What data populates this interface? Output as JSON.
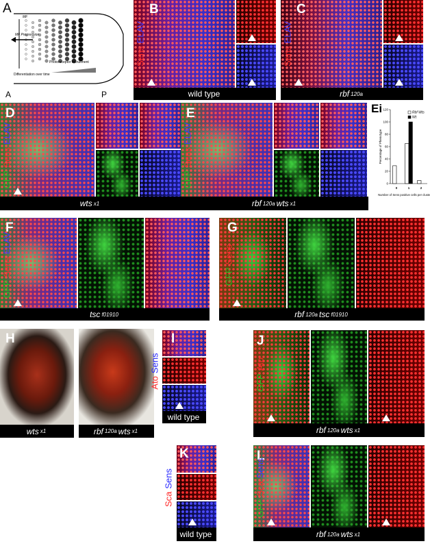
{
  "panel_a": {
    "letter": "A",
    "mf": "MF",
    "progression": "MF Progression",
    "recruitment": "Photoreceptor recruitment",
    "differentiation": "Differentiation over time",
    "anterior": "A",
    "posterior": "P"
  },
  "panels": [
    {
      "letter": "B",
      "channels": [
        {
          "text": "Sens",
          "color": "#ff2a2a"
        },
        {
          "text": "ELAV",
          "color": "#3a3aff"
        }
      ],
      "captions": [
        [
          {
            "text": "wild type",
            "style": "normal"
          }
        ]
      ]
    },
    {
      "letter": "C",
      "channels": [
        {
          "text": "Sens",
          "color": "#ff2a2a"
        },
        {
          "text": "ELAV",
          "color": "#3a3aff"
        }
      ],
      "captions": [
        [
          {
            "text": "rbf",
            "style": "italic"
          },
          {
            "text": "120a",
            "style": "sup"
          }
        ]
      ]
    },
    {
      "letter": "D",
      "channels": [
        {
          "text": "GFP",
          "color": "#22c022"
        },
        {
          "text": "Sens",
          "color": "#ff2a2a"
        },
        {
          "text": "ELAV",
          "color": "#3a3aff"
        }
      ],
      "captions": [
        [
          {
            "text": "wts",
            "style": "italic"
          },
          {
            "text": "x1",
            "style": "sup"
          }
        ]
      ]
    },
    {
      "letter": "E",
      "channels": [
        {
          "text": "GFP",
          "color": "#22c022"
        },
        {
          "text": "Sens",
          "color": "#ff2a2a"
        },
        {
          "text": "ELAV",
          "color": "#3a3aff"
        }
      ],
      "captions": [
        [
          {
            "text": "rbf",
            "style": "italic"
          },
          {
            "text": "120a",
            "style": "sup"
          },
          {
            "text": "wts",
            "style": "italic"
          },
          {
            "text": "x1",
            "style": "sup"
          }
        ]
      ]
    },
    {
      "letter": "F",
      "channels": [
        {
          "text": "GFP",
          "color": "#22c022"
        },
        {
          "text": "Sens",
          "color": "#ff2a2a"
        },
        {
          "text": "ELAV",
          "color": "#3a3aff"
        }
      ],
      "captions": [
        [
          {
            "text": "tsc",
            "style": "italic"
          },
          {
            "text": "f01910",
            "style": "sup"
          }
        ]
      ]
    },
    {
      "letter": "G",
      "channels": [
        {
          "text": "GFP",
          "color": "#22c022"
        },
        {
          "text": "Sens",
          "color": "#ff2a2a"
        }
      ],
      "captions": [
        [
          {
            "text": "rbf",
            "style": "italic"
          },
          {
            "text": "120a",
            "style": "sup"
          },
          {
            "text": "tsc",
            "style": "italic"
          },
          {
            "text": "f01910",
            "style": "sup"
          }
        ]
      ]
    },
    {
      "letter": "H",
      "channels": [],
      "captions": [
        [
          {
            "text": "wts",
            "style": "italic"
          },
          {
            "text": "x1",
            "style": "sup"
          }
        ],
        [
          {
            "text": "rbf",
            "style": "italic"
          },
          {
            "text": "120a",
            "style": "sup"
          },
          {
            "text": "wts",
            "style": "italic"
          },
          {
            "text": "x1",
            "style": "sup"
          }
        ]
      ]
    },
    {
      "letter": "I",
      "channels": [
        {
          "text": "Ato",
          "color": "#ff2a2a"
        },
        {
          "text": "Sens",
          "color": "#2a2aff"
        }
      ],
      "captions": [
        [
          {
            "text": "wild type",
            "style": "normal"
          }
        ]
      ]
    },
    {
      "letter": "J",
      "channels": [
        {
          "text": "GFP",
          "color": "#22c022"
        },
        {
          "text": "Ato",
          "color": "#ff2a2a"
        }
      ],
      "captions": [
        [
          {
            "text": "rbf",
            "style": "italic"
          },
          {
            "text": "120a",
            "style": "sup"
          },
          {
            "text": "wts",
            "style": "italic"
          },
          {
            "text": "x1",
            "style": "sup"
          }
        ]
      ]
    },
    {
      "letter": "K",
      "channels": [
        {
          "text": "Sca",
          "color": "#ff2a2a"
        },
        {
          "text": "Sens",
          "color": "#2a2aff"
        }
      ],
      "captions": [
        [
          {
            "text": "wild type",
            "style": "normal"
          }
        ]
      ]
    },
    {
      "letter": "L",
      "channels": [
        {
          "text": "GFP",
          "color": "#22c022"
        },
        {
          "text": "Sca",
          "color": "#ff2a2a"
        },
        {
          "text": "Sens",
          "color": "#3a3aff"
        }
      ],
      "captions": [
        [
          {
            "text": "rbf",
            "style": "italic"
          },
          {
            "text": "120a",
            "style": "sup"
          },
          {
            "text": "wts",
            "style": "italic"
          },
          {
            "text": "x1",
            "style": "sup"
          }
        ]
      ]
    }
  ],
  "chart_data": {
    "type": "bar",
    "letter": "Ei",
    "ylabel": "Percentage of Phenotype",
    "xlabel": "Number of Sens positive cells per cluster",
    "categories": [
      "0",
      "1",
      "2"
    ],
    "series": [
      {
        "name": "Rbf Wts",
        "color": "#ffffff",
        "values": [
          29,
          65,
          5
        ]
      },
      {
        "name": "Wt",
        "color": "#000000",
        "values": [
          0,
          100,
          0
        ]
      }
    ],
    "ylim": [
      0,
      120
    ],
    "yticks": [
      0,
      20,
      40,
      60,
      80,
      100,
      120
    ],
    "legend": "upper-right"
  }
}
